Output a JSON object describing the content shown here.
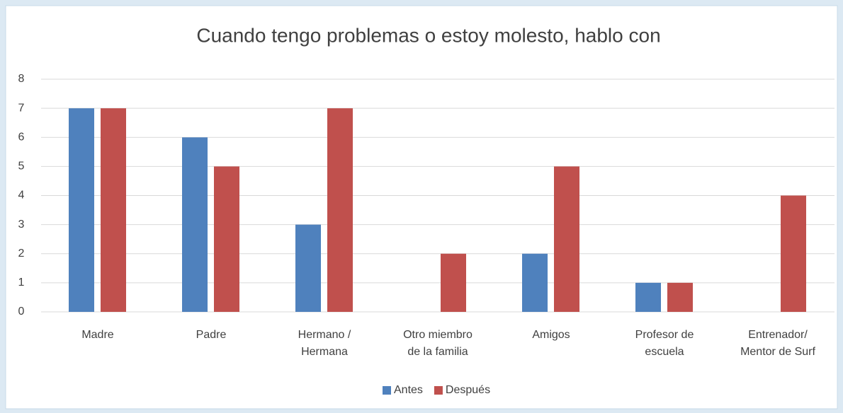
{
  "chart_data": {
    "type": "bar",
    "title": "Cuando tengo problemas o estoy molesto, hablo con",
    "categories": [
      [
        "Madre"
      ],
      [
        "Padre"
      ],
      [
        "Hermano /",
        "Hermana"
      ],
      [
        "Otro miembro",
        "de la familia"
      ],
      [
        "Amigos"
      ],
      [
        "Profesor de",
        "escuela"
      ],
      [
        "Entrenador/",
        "Mentor de Surf"
      ]
    ],
    "series": [
      {
        "name": "Antes",
        "color": "#4f81bd",
        "values": [
          7,
          6,
          3,
          0,
          2,
          1,
          0
        ]
      },
      {
        "name": "Después",
        "color": "#c0504d",
        "values": [
          7,
          5,
          7,
          2,
          5,
          1,
          4
        ]
      }
    ],
    "ylim": [
      0,
      8
    ],
    "yticks": [
      0,
      1,
      2,
      3,
      4,
      5,
      6,
      7,
      8
    ],
    "grid": true,
    "legend": "bottom"
  }
}
